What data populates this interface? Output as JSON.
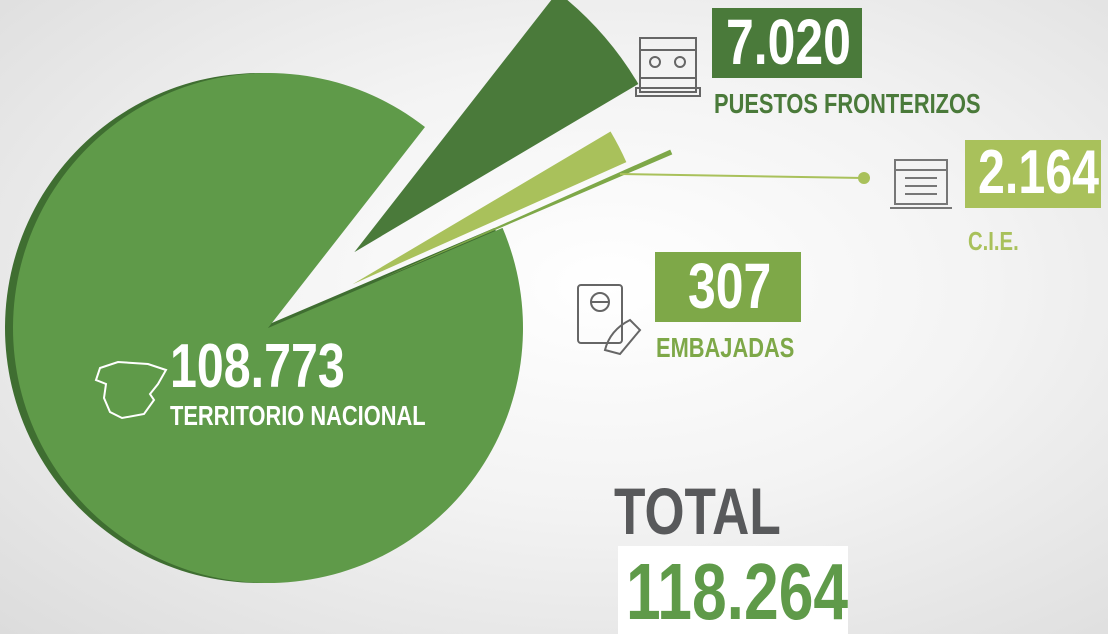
{
  "chart_data": {
    "type": "pie",
    "categories": [
      "TERRITORIO NACIONAL",
      "PUESTOS FRONTERIZOS",
      "C.I.E.",
      "EMBAJADAS"
    ],
    "values": [
      108773,
      7020,
      2164,
      307
    ],
    "value_labels": [
      "108.773",
      "7.020",
      "2.164",
      "307"
    ],
    "colors": [
      "#5f9a49",
      "#4a7a3a",
      "#a9c15b",
      "#7ea848"
    ],
    "total_title": "TOTAL",
    "total": 118264,
    "total_label": "118.264"
  }
}
